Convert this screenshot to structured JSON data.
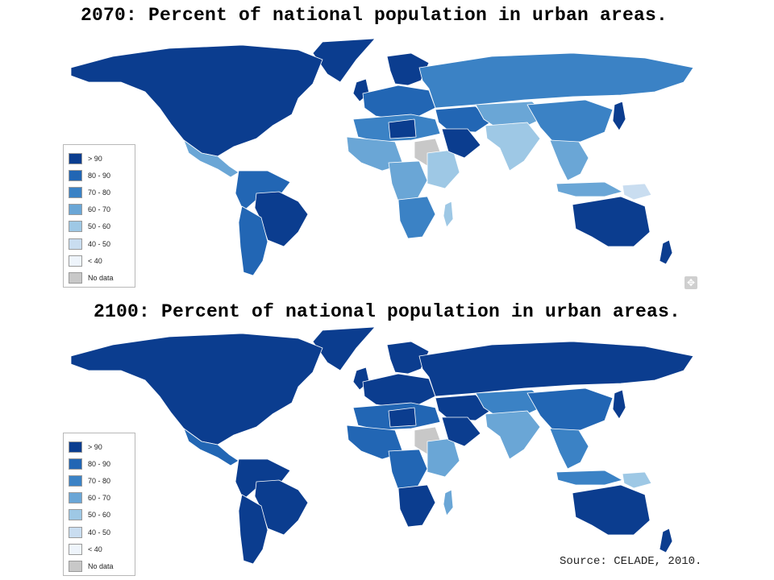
{
  "titles": {
    "top": "2070: Percent of national population in urban areas.",
    "bottom": "2100: Percent of national population in urban areas."
  },
  "legend": {
    "items": [
      {
        "label": "> 90",
        "color": "#0b3d8f"
      },
      {
        "label": "80 - 90",
        "color": "#2266b4"
      },
      {
        "label": "70 - 80",
        "color": "#3b82c5"
      },
      {
        "label": "60 - 70",
        "color": "#6aa6d6"
      },
      {
        "label": "50 - 60",
        "color": "#9ec8e5"
      },
      {
        "label": "40 - 50",
        "color": "#c9ddf0"
      },
      {
        "label": "< 40",
        "color": "#eef4fb"
      },
      {
        "label": "No data",
        "color": "#c8c8c8"
      }
    ]
  },
  "maps": {
    "top": {
      "regions": {
        "north-america": 0,
        "central-america": 3,
        "south-america-north": 1,
        "south-america-south": 1,
        "brazil": 0,
        "western-europe": 1,
        "scandinavia": 0,
        "russia": 2,
        "north-africa": 2,
        "sahara": 0,
        "west-africa": 3,
        "sudan": 7,
        "central-africa": 3,
        "east-africa": 4,
        "southern-africa": 2,
        "madagascar": 4,
        "middle-east": 1,
        "arabia": 0,
        "central-asia": 3,
        "south-asia": 4,
        "china": 2,
        "southeast-asia": 3,
        "japan": 0,
        "indonesia": 3,
        "papua": 5,
        "australia": 0,
        "new-zealand": 0,
        "greenland": 0,
        "uk": 0
      }
    },
    "bottom": {
      "regions": {
        "north-america": 0,
        "central-america": 1,
        "south-america-north": 0,
        "south-america-south": 0,
        "brazil": 0,
        "western-europe": 0,
        "scandinavia": 0,
        "russia": 0,
        "north-africa": 1,
        "sahara": 0,
        "west-africa": 1,
        "sudan": 7,
        "central-africa": 1,
        "east-africa": 3,
        "southern-africa": 0,
        "madagascar": 3,
        "middle-east": 0,
        "arabia": 0,
        "central-asia": 2,
        "south-asia": 3,
        "china": 1,
        "southeast-asia": 2,
        "japan": 0,
        "indonesia": 2,
        "papua": 4,
        "australia": 0,
        "new-zealand": 0,
        "greenland": 0,
        "uk": 0
      }
    }
  },
  "zoom_icon": "zoom-icon",
  "source": "Source: CELADE, 2010."
}
